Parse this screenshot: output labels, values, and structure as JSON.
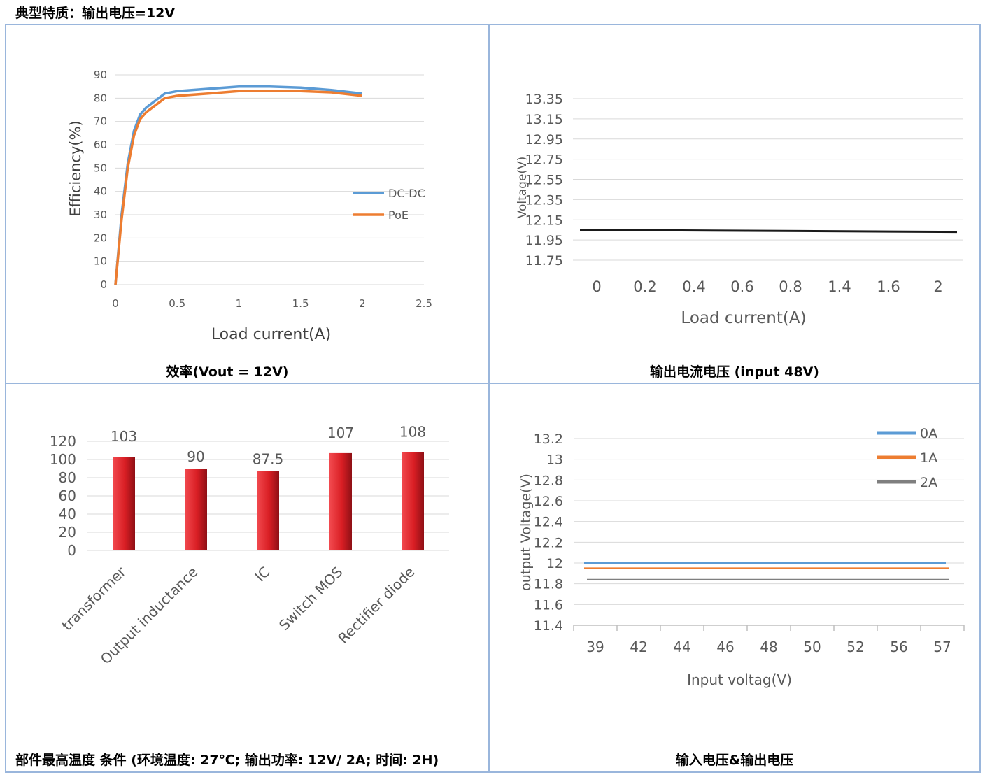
{
  "page": {
    "title": "典型特质：输出电压=12V"
  },
  "captions": {
    "c1": "效率(Vout = 12V)",
    "c2": "输出电流电压 (input 48V)",
    "c3": "部件最高温度 条件 (环境温度: 27℃; 输出功率: 12V/ 2A;  时间: 2H)",
    "c4": "输入电压&输出电压"
  },
  "chart_data": [
    {
      "type": "line",
      "title": "",
      "xlabel": "Load current(A)",
      "ylabel": "Efficiency(%)",
      "xlim": [
        0,
        2.5
      ],
      "ylim": [
        0,
        90
      ],
      "xticks": [
        "0",
        "0.5",
        "1",
        "1.5",
        "2",
        "2.5"
      ],
      "yticks": [
        "0",
        "10",
        "20",
        "30",
        "40",
        "50",
        "60",
        "70",
        "80",
        "90"
      ],
      "grid": "horizontal",
      "legend": "right",
      "series": [
        {
          "name": "DC-DC",
          "color": "#5b9bd5",
          "x": [
            0,
            0.05,
            0.1,
            0.15,
            0.2,
            0.25,
            0.3,
            0.4,
            0.5,
            0.75,
            1.0,
            1.25,
            1.5,
            1.75,
            2.0
          ],
          "y": [
            0,
            30,
            52,
            66,
            73,
            76,
            78,
            82,
            83,
            84,
            85,
            85,
            84.5,
            83.5,
            82
          ]
        },
        {
          "name": "PoE",
          "color": "#ed7d31",
          "x": [
            0,
            0.05,
            0.1,
            0.15,
            0.2,
            0.25,
            0.3,
            0.4,
            0.5,
            0.75,
            1.0,
            1.25,
            1.5,
            1.75,
            2.0
          ],
          "y": [
            0,
            28,
            50,
            64,
            71,
            74,
            76,
            80,
            81,
            82,
            83,
            83,
            83,
            82.5,
            81
          ]
        }
      ]
    },
    {
      "type": "line",
      "title": "",
      "xlabel": "Load current(A)",
      "ylabel": "Voltage(V)",
      "categories": [
        "0",
        "0.2",
        "0.4",
        "0.6",
        "0.8",
        "1.4",
        "1.6",
        "2"
      ],
      "ylim": [
        11.75,
        13.35
      ],
      "yticks": [
        "11.75",
        "11.95",
        "12.15",
        "12.35",
        "12.55",
        "12.75",
        "12.95",
        "13.15",
        "13.35"
      ],
      "grid": "horizontal",
      "series": [
        {
          "color": "#1a1a1a",
          "values": [
            12.05,
            12.05,
            12.04,
            12.04,
            12.04,
            12.03,
            12.03,
            12.03
          ]
        }
      ]
    },
    {
      "type": "bar",
      "title": "",
      "categories": [
        "transformer",
        "Output inductance",
        "IC",
        "Switch MOS",
        "Rectifier diode"
      ],
      "values": [
        103,
        90,
        87.5,
        107,
        108
      ],
      "value_labels": [
        "103",
        "90",
        "87.5",
        "107",
        "108"
      ],
      "ylim": [
        0,
        120
      ],
      "yticks": [
        "0",
        "20",
        "40",
        "60",
        "80",
        "100",
        "120"
      ],
      "grid": "horizontal",
      "color": "#e0262c"
    },
    {
      "type": "line",
      "title": "",
      "xlabel": "Input voltag(V)",
      "ylabel": "output Voltage(V)",
      "categories": [
        "39",
        "42",
        "44",
        "46",
        "48",
        "50",
        "52",
        "56",
        "57"
      ],
      "ylim": [
        11.4,
        13.2
      ],
      "yticks": [
        "11.4",
        "11.6",
        "11.8",
        "12",
        "12.2",
        "12.4",
        "12.6",
        "12.8",
        "13",
        "13.2"
      ],
      "grid": "horizontal",
      "legend": "top-right",
      "series": [
        {
          "name": "0A",
          "color": "#5b9bd5",
          "values": [
            12.0,
            12.0,
            12.0,
            12.0,
            12.0,
            12.0,
            12.0,
            12.0,
            12.0
          ]
        },
        {
          "name": "1A",
          "color": "#ed7d31",
          "values": [
            11.95,
            11.95,
            11.95,
            11.95,
            11.95,
            11.95,
            11.95,
            11.95,
            11.95
          ]
        },
        {
          "name": "2A",
          "color": "#7f7f7f",
          "values": [
            11.84,
            11.84,
            11.84,
            11.84,
            11.84,
            11.84,
            11.84,
            11.84,
            11.84
          ]
        }
      ]
    }
  ]
}
